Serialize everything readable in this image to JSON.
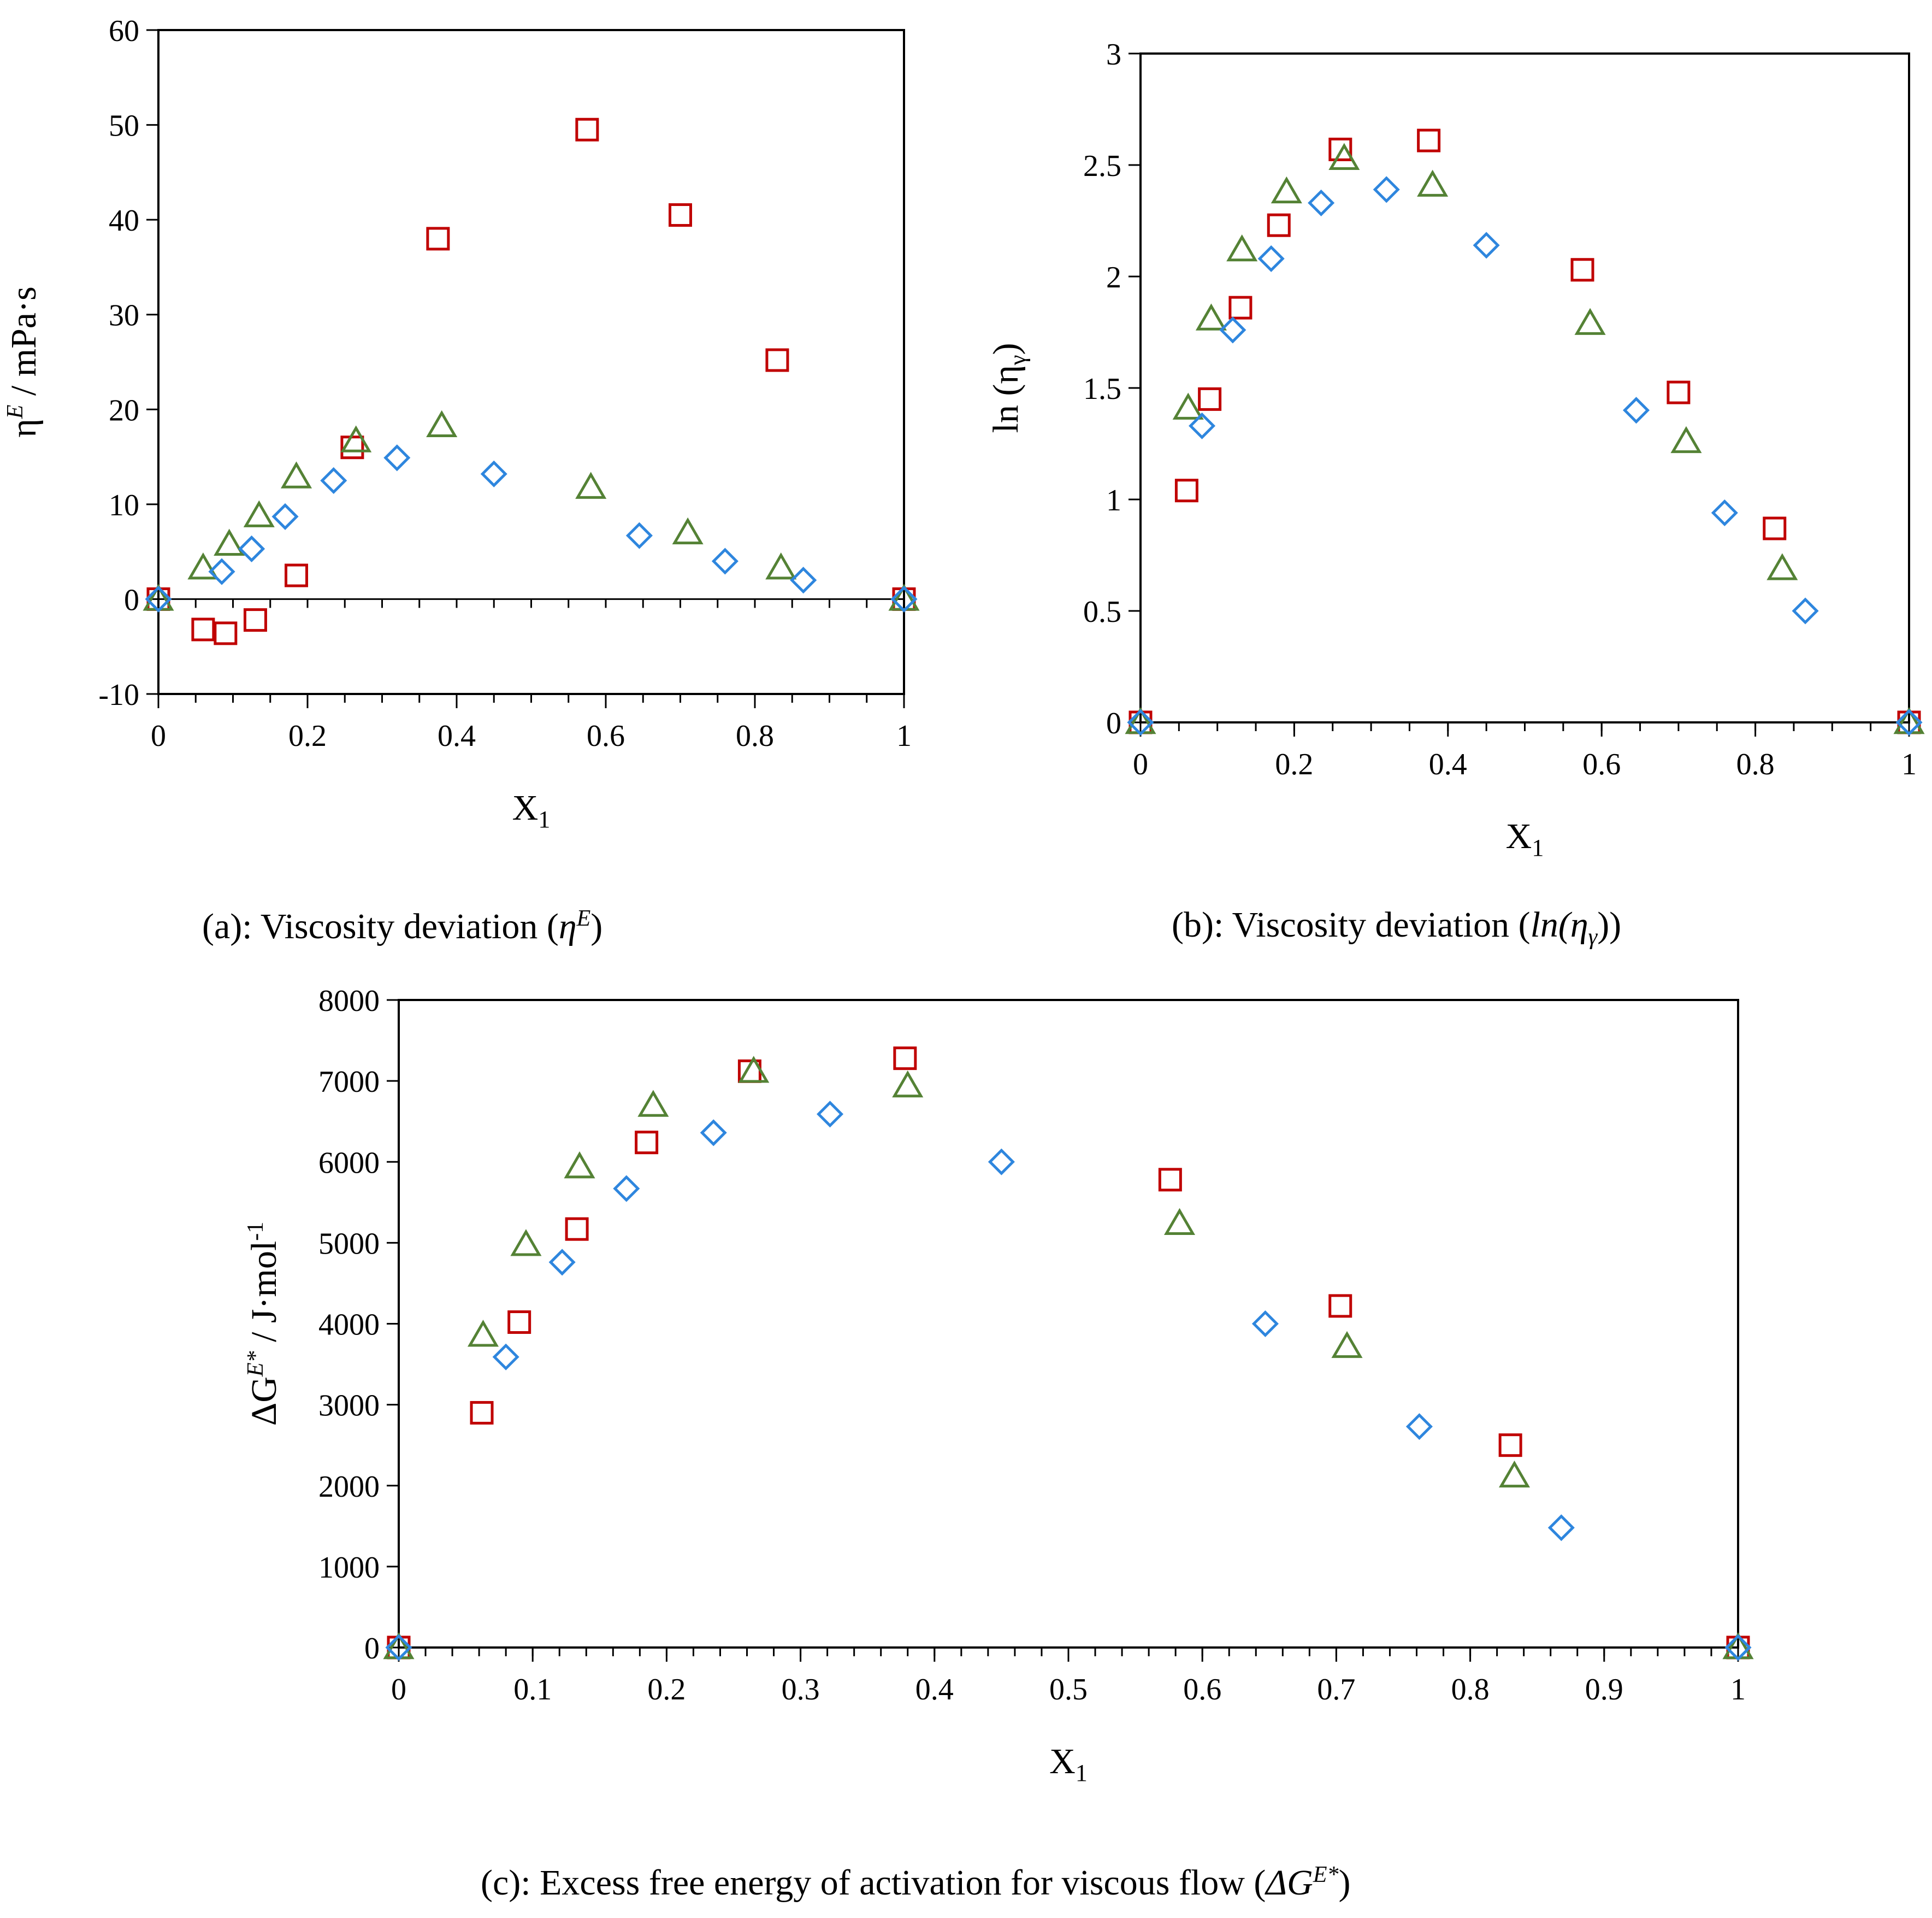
{
  "colors": {
    "red": "#c00000",
    "green": "#548235",
    "blue": "#2e86de",
    "axis": "#000000"
  },
  "marker_names": {
    "red": "square",
    "green": "triangle",
    "blue": "diamond"
  },
  "captions": {
    "a_text": "(a): Viscosity deviation (",
    "a_sym": "η",
    "a_sup": "E",
    "a_close": ")",
    "b_text": "(b): Viscosity deviation (",
    "b_sym": "ln(η",
    "b_sub": "γ",
    "b_close": "))",
    "c_text": "(c): Excess free energy of activation for viscous flow (",
    "c_sym": "ΔG",
    "c_sup": "E*",
    "c_close": ")"
  },
  "chart_data": [
    {
      "id": "a",
      "type": "scatter",
      "xlabel_main": "X",
      "xlabel_sub": "1",
      "ylabel_main": "η",
      "ylabel_sup": "E",
      "ylabel_rest": " / mPa·s",
      "xlim": [
        0,
        1
      ],
      "ylim": [
        -10,
        60
      ],
      "xticks": [
        0,
        0.2,
        0.4,
        0.6,
        0.8,
        1
      ],
      "xtick_labels": [
        "0",
        "0.2",
        "0.4",
        "0.6",
        "0.8",
        "1"
      ],
      "yticks": [
        -10,
        0,
        10,
        20,
        30,
        40,
        50,
        60
      ],
      "ytick_labels": [
        "-10",
        "0",
        "10",
        "20",
        "30",
        "40",
        "50",
        "60"
      ],
      "minor_x": 0.05,
      "series": [
        {
          "marker": "square",
          "color": "red",
          "x": [
            0,
            0.06,
            0.09,
            0.13,
            0.185,
            0.26,
            0.375,
            0.575,
            0.7,
            0.83,
            1
          ],
          "y": [
            0,
            -3.2,
            -3.6,
            -2.2,
            2.5,
            16.0,
            38.0,
            49.5,
            40.5,
            25.2,
            0
          ]
        },
        {
          "marker": "triangle",
          "color": "green",
          "x": [
            0,
            0.06,
            0.095,
            0.135,
            0.185,
            0.265,
            0.38,
            0.58,
            0.71,
            0.835,
            1
          ],
          "y": [
            0,
            3.3,
            5.8,
            8.8,
            12.9,
            16.7,
            18.3,
            11.8,
            7.0,
            3.3,
            0
          ]
        },
        {
          "marker": "diamond",
          "color": "blue",
          "x": [
            0,
            0.085,
            0.125,
            0.17,
            0.235,
            0.32,
            0.45,
            0.645,
            0.76,
            0.865,
            1
          ],
          "y": [
            0,
            2.9,
            5.3,
            8.7,
            12.5,
            14.9,
            13.2,
            6.7,
            4.0,
            2.0,
            0
          ]
        }
      ]
    },
    {
      "id": "b",
      "type": "scatter",
      "xlabel_main": "X",
      "xlabel_sub": "1",
      "ylabel_main": "ln (η",
      "ylabel_sub": "γ",
      "ylabel_rest": ")",
      "xlim": [
        0,
        1
      ],
      "ylim": [
        0,
        3
      ],
      "xticks": [
        0,
        0.2,
        0.4,
        0.6,
        0.8,
        1
      ],
      "xtick_labels": [
        "0",
        "0.2",
        "0.4",
        "0.6",
        "0.8",
        "1"
      ],
      "yticks": [
        0,
        0.5,
        1,
        1.5,
        2,
        2.5,
        3
      ],
      "ytick_labels": [
        "0",
        "0.5",
        "1",
        "1.5",
        "2",
        "2.5",
        "3"
      ],
      "minor_x": 0.05,
      "series": [
        {
          "marker": "square",
          "color": "red",
          "x": [
            0,
            0.06,
            0.09,
            0.13,
            0.18,
            0.26,
            0.375,
            0.575,
            0.7,
            0.825,
            1
          ],
          "y": [
            0,
            1.04,
            1.45,
            1.86,
            2.23,
            2.57,
            2.61,
            2.03,
            1.48,
            0.87,
            0
          ]
        },
        {
          "marker": "triangle",
          "color": "green",
          "x": [
            0,
            0.062,
            0.092,
            0.132,
            0.19,
            0.265,
            0.38,
            0.585,
            0.71,
            0.835,
            1
          ],
          "y": [
            0,
            1.41,
            1.81,
            2.12,
            2.38,
            2.53,
            2.41,
            1.79,
            1.26,
            0.69,
            0
          ]
        },
        {
          "marker": "diamond",
          "color": "blue",
          "x": [
            0,
            0.08,
            0.12,
            0.17,
            0.235,
            0.32,
            0.45,
            0.645,
            0.76,
            0.865,
            1
          ],
          "y": [
            0,
            1.33,
            1.76,
            2.08,
            2.33,
            2.39,
            2.14,
            1.4,
            0.94,
            0.5,
            0
          ]
        }
      ]
    },
    {
      "id": "c",
      "type": "scatter",
      "xlabel_main": "X",
      "xlabel_sub": "1",
      "ylabel_main": "ΔG",
      "ylabel_sup": "E*",
      "ylabel_rest": " / J·mol",
      "ylabel_sup2": "-1",
      "xlim": [
        0,
        1
      ],
      "ylim": [
        0,
        8000
      ],
      "xticks": [
        0,
        0.1,
        0.2,
        0.3,
        0.4,
        0.5,
        0.6,
        0.7,
        0.8,
        0.9,
        1
      ],
      "xtick_labels": [
        "0",
        "0.1",
        "0.2",
        "0.3",
        "0.4",
        "0.5",
        "0.6",
        "0.7",
        "0.8",
        "0.9",
        "1"
      ],
      "yticks": [
        0,
        1000,
        2000,
        3000,
        4000,
        5000,
        6000,
        7000,
        8000
      ],
      "ytick_labels": [
        "0",
        "1000",
        "2000",
        "3000",
        "4000",
        "5000",
        "6000",
        "7000",
        "8000"
      ],
      "minor_x": 0.02,
      "series": [
        {
          "marker": "square",
          "color": "red",
          "x": [
            0,
            0.062,
            0.09,
            0.133,
            0.185,
            0.262,
            0.378,
            0.576,
            0.703,
            0.83,
            1
          ],
          "y": [
            0,
            2900,
            4020,
            5170,
            6240,
            7120,
            7280,
            5780,
            4220,
            2500,
            0
          ]
        },
        {
          "marker": "triangle",
          "color": "green",
          "x": [
            0,
            0.063,
            0.095,
            0.135,
            0.19,
            0.265,
            0.38,
            0.583,
            0.708,
            0.833,
            1
          ],
          "y": [
            0,
            3860,
            4980,
            5940,
            6700,
            7120,
            6940,
            5240,
            3720,
            2120,
            0
          ]
        },
        {
          "marker": "diamond",
          "color": "blue",
          "x": [
            0,
            0.08,
            0.122,
            0.17,
            0.235,
            0.322,
            0.45,
            0.647,
            0.762,
            0.868,
            1
          ],
          "y": [
            0,
            3590,
            4760,
            5670,
            6360,
            6590,
            6000,
            4000,
            2730,
            1480,
            0
          ]
        }
      ]
    }
  ]
}
